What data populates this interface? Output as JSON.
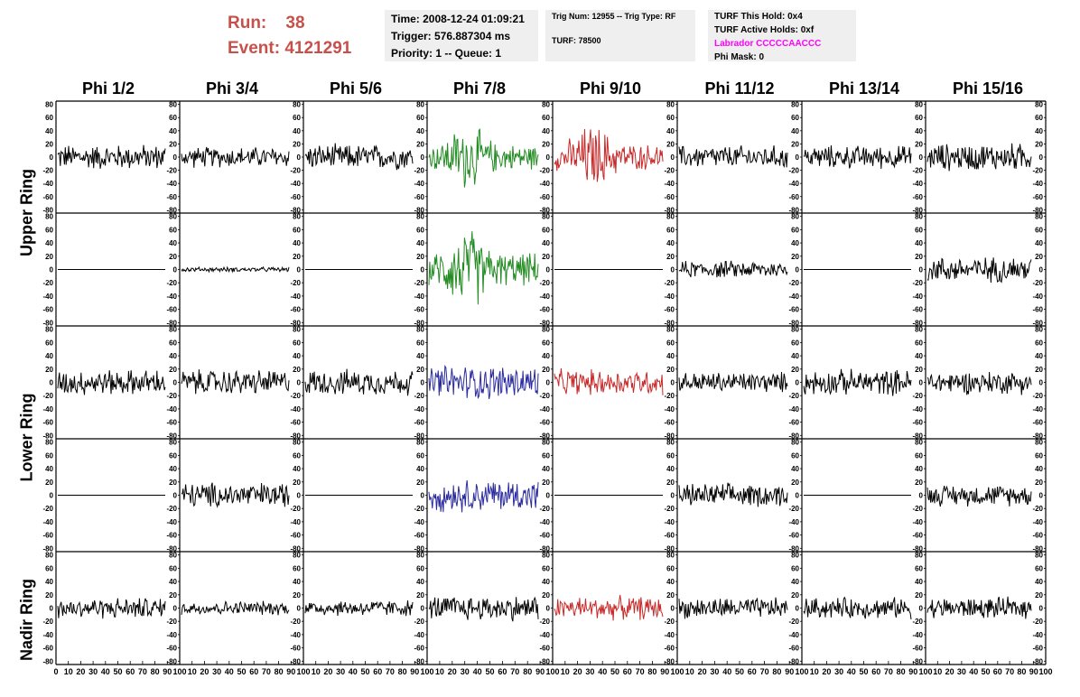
{
  "header": {
    "run_label": "Run:",
    "run_value": "38",
    "event_label": "Event:",
    "event_value": "4121291",
    "time": "Time: 2008-12-24 01:09:21",
    "trigger": "Trigger: 576.887304 ms",
    "priority": "Priority: 1 -- Queue: 1",
    "trig_num": "Trig Num: 12955 -- Trig Type: RF",
    "turf": "TURF: 78500",
    "turf_this_hold": "TURF This Hold: 0x4",
    "turf_active_holds": "TURF Active Holds: 0xf",
    "labrador": "Labrador CCCCCAACCC",
    "phi_mask": "Phi Mask: 0"
  },
  "colors": {
    "header_red": "#c8504a",
    "labrador_magenta": "#ff00ff",
    "trace_black": "#000000",
    "trace_green": "#228b22",
    "trace_red": "#c82828",
    "trace_blue": "#2a2aa0",
    "box_bg": "#efefef"
  },
  "chart_data": {
    "type": "line",
    "grid": false,
    "columns": [
      "Phi 1/2",
      "Phi 3/4",
      "Phi 5/6",
      "Phi 7/8",
      "Phi 9/10",
      "Phi 11/12",
      "Phi 13/14",
      "Phi 15/16"
    ],
    "ring_labels": [
      "Upper Ring",
      "Lower Ring",
      "Nadir Ring"
    ],
    "ylim": [
      -85,
      85
    ],
    "xlim": [
      0,
      100
    ],
    "yticks": [
      80,
      60,
      40,
      20,
      0,
      -20,
      -40,
      -60,
      -80
    ],
    "xticks": [
      0,
      10,
      20,
      30,
      40,
      50,
      60,
      70,
      80,
      90,
      100
    ],
    "approx_trace_amplitude": [
      [
        22,
        18,
        22,
        40,
        40,
        20,
        20,
        24
      ],
      [
        0,
        4,
        0,
        50,
        0,
        15,
        0,
        22
      ],
      [
        22,
        22,
        22,
        30,
        22,
        18,
        22,
        20
      ],
      [
        0,
        22,
        0,
        28,
        0,
        20,
        0,
        18
      ],
      [
        18,
        12,
        14,
        22,
        20,
        18,
        18,
        18
      ]
    ],
    "trace_colors": [
      [
        "black",
        "black",
        "black",
        "green",
        "red",
        "black",
        "black",
        "black"
      ],
      [
        "black",
        "black",
        "black",
        "green",
        "black",
        "black",
        "black",
        "black"
      ],
      [
        "black",
        "black",
        "black",
        "blue",
        "red",
        "black",
        "black",
        "black"
      ],
      [
        "black",
        "black",
        "black",
        "blue",
        "black",
        "black",
        "black",
        "black"
      ],
      [
        "black",
        "black",
        "black",
        "black",
        "red",
        "black",
        "black",
        "black"
      ]
    ]
  }
}
